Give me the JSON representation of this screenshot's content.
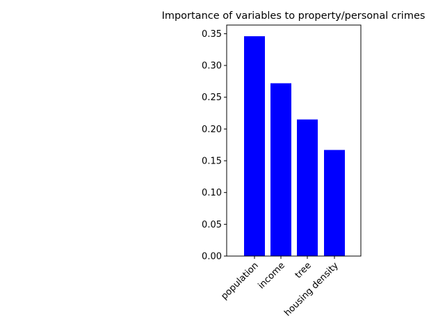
{
  "chart_data": {
    "type": "bar",
    "title": "Importance of variables to property/personal crimes",
    "xlabel": "",
    "ylabel": "",
    "categories": [
      "population",
      "income",
      "tree",
      "housing density"
    ],
    "values": [
      0.346,
      0.272,
      0.215,
      0.167
    ],
    "bar_color": "#0000ff",
    "ylim": [
      0,
      0.3636
    ],
    "yticks": [
      0.0,
      0.05,
      0.1,
      0.15,
      0.2,
      0.25,
      0.3,
      0.35
    ],
    "ytick_labels": [
      "0.00",
      "0.05",
      "0.10",
      "0.15",
      "0.20",
      "0.25",
      "0.30",
      "0.35"
    ],
    "grid": false,
    "legend": "none"
  }
}
